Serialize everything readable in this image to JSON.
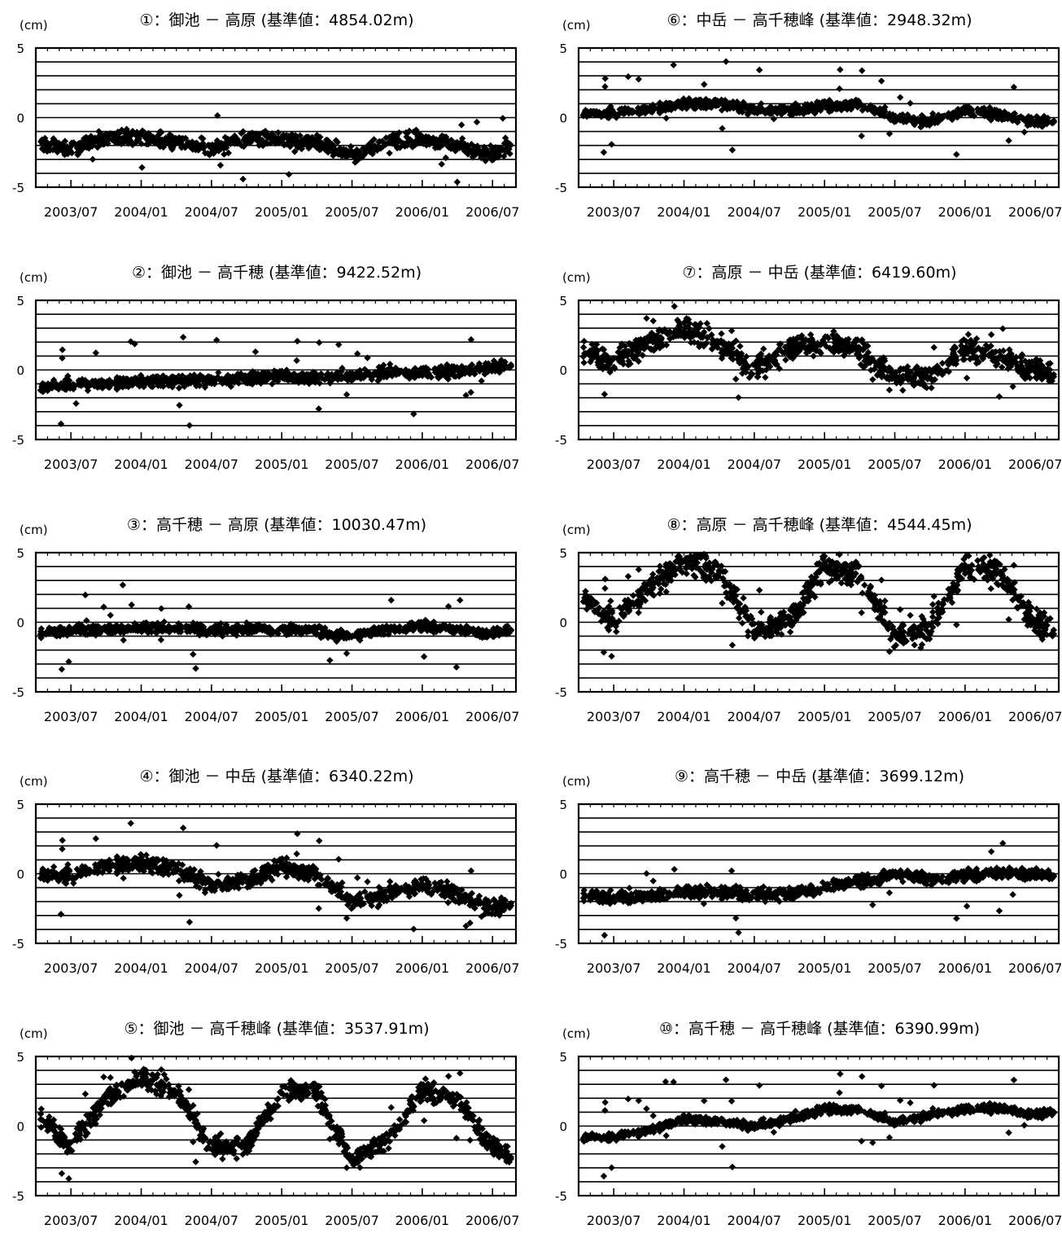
{
  "page": {
    "unit_label": "(cm)"
  },
  "chart_data": [
    {
      "type": "scatter",
      "title": "①：御池 － 高原 (基準値：4854.02m)",
      "ylabel": "(cm)",
      "ylim": [
        -5,
        5
      ],
      "yticks": [
        "5",
        "0",
        "-5"
      ],
      "xticks": [
        "2003/07",
        "2004/01",
        "2004/07",
        "2005/01",
        "2005/07",
        "2006/01",
        "2006/07"
      ],
      "xlim": [
        "2003/04",
        "2006/09"
      ],
      "grid": true,
      "marker": "diamond",
      "color": "#000000",
      "series": [
        {
          "x": [
            "2003/04",
            "2003/07",
            "2003/10",
            "2004/01",
            "2004/04",
            "2004/07",
            "2004/10",
            "2005/01",
            "2005/04",
            "2005/07",
            "2005/10",
            "2006/01",
            "2006/04",
            "2006/07",
            "2006/09"
          ],
          "values": [
            -2,
            -2.3,
            -1.5,
            -1.3,
            -1.8,
            -2.2,
            -1.5,
            -1.6,
            -1.8,
            -2.8,
            -1.7,
            -1.5,
            -1.9,
            -2.7,
            -2.0
          ]
        }
      ]
    },
    {
      "type": "scatter",
      "title": "②：御池 － 高千穂 (基準値：9422.52m)",
      "ylabel": "(cm)",
      "ylim": [
        -5,
        5
      ],
      "yticks": [
        "5",
        "0",
        "-5"
      ],
      "xticks": [
        "2003/07",
        "2004/01",
        "2004/07",
        "2005/01",
        "2005/07",
        "2006/01",
        "2006/07"
      ],
      "xlim": [
        "2003/04",
        "2006/09"
      ],
      "grid": true,
      "marker": "diamond",
      "color": "#000000",
      "series": [
        {
          "x": [
            "2003/04",
            "2003/07",
            "2003/10",
            "2004/01",
            "2004/04",
            "2004/07",
            "2004/10",
            "2005/01",
            "2005/04",
            "2005/07",
            "2005/10",
            "2006/01",
            "2006/04",
            "2006/07",
            "2006/09"
          ],
          "values": [
            -1.3,
            -1.0,
            -1.0,
            -0.8,
            -0.8,
            -0.7,
            -0.6,
            -0.5,
            -0.5,
            -0.4,
            -0.2,
            -0.2,
            -0.1,
            0.2,
            0.3
          ]
        }
      ]
    },
    {
      "type": "scatter",
      "title": "③：高千穂 － 高原 (基準値：10030.47m)",
      "ylabel": "(cm)",
      "ylim": [
        -5,
        5
      ],
      "yticks": [
        "5",
        "0",
        "-5"
      ],
      "xticks": [
        "2003/07",
        "2004/01",
        "2004/07",
        "2005/01",
        "2005/07",
        "2006/01",
        "2006/07"
      ],
      "xlim": [
        "2003/04",
        "2006/09"
      ],
      "grid": true,
      "marker": "diamond",
      "color": "#000000",
      "series": [
        {
          "x": [
            "2003/04",
            "2003/07",
            "2003/10",
            "2004/01",
            "2004/04",
            "2004/07",
            "2004/10",
            "2005/01",
            "2005/04",
            "2005/07",
            "2005/10",
            "2006/01",
            "2006/04",
            "2006/07",
            "2006/09"
          ],
          "values": [
            -0.8,
            -0.6,
            -0.5,
            -0.4,
            -0.4,
            -0.6,
            -0.5,
            -0.5,
            -0.6,
            -1.0,
            -0.5,
            -0.3,
            -0.5,
            -0.8,
            -0.5
          ]
        }
      ]
    },
    {
      "type": "scatter",
      "title": "④：御池 － 中岳 (基準値：6340.22m)",
      "ylabel": "(cm)",
      "ylim": [
        -5,
        5
      ],
      "yticks": [
        "5",
        "0",
        "-5"
      ],
      "xticks": [
        "2003/07",
        "2004/01",
        "2004/07",
        "2005/01",
        "2005/07",
        "2006/01",
        "2006/07"
      ],
      "xlim": [
        "2003/04",
        "2006/09"
      ],
      "grid": true,
      "marker": "diamond",
      "color": "#000000",
      "series": [
        {
          "x": [
            "2003/04",
            "2003/07",
            "2003/10",
            "2004/01",
            "2004/04",
            "2004/07",
            "2004/10",
            "2005/01",
            "2005/04",
            "2005/07",
            "2005/10",
            "2006/01",
            "2006/04",
            "2006/07",
            "2006/09"
          ],
          "values": [
            0,
            -0.2,
            0.6,
            0.8,
            0.3,
            -0.8,
            -0.5,
            0.5,
            0,
            -2.0,
            -1.5,
            -0.8,
            -1.5,
            -2.5,
            -2.2
          ]
        }
      ]
    },
    {
      "type": "scatter",
      "title": "⑤：御池 － 高千穂峰 (基準値：3537.91m)",
      "ylabel": "(cm)",
      "ylim": [
        -5,
        5
      ],
      "yticks": [
        "5",
        "0",
        "-5"
      ],
      "xticks": [
        "2003/07",
        "2004/01",
        "2004/07",
        "2005/01",
        "2005/07",
        "2006/01",
        "2006/07"
      ],
      "xlim": [
        "2003/04",
        "2006/09"
      ],
      "grid": true,
      "marker": "diamond",
      "color": "#000000",
      "series": [
        {
          "x": [
            "2003/04",
            "2003/07",
            "2003/10",
            "2004/01",
            "2004/04",
            "2004/07",
            "2004/10",
            "2005/01",
            "2005/04",
            "2005/07",
            "2005/10",
            "2006/01",
            "2006/04",
            "2006/07",
            "2006/09"
          ],
          "values": [
            1,
            -1.5,
            2,
            3.5,
            2.5,
            -1.5,
            -1.5,
            2.5,
            2.5,
            -2.5,
            -1,
            2.5,
            2,
            -1.5,
            -2.5
          ]
        }
      ]
    },
    {
      "type": "scatter",
      "title": "⑥：中岳 － 高千穂峰 (基準値：2948.32m)",
      "ylabel": "(cm)",
      "ylim": [
        -5,
        5
      ],
      "yticks": [
        "5",
        "0",
        "-5"
      ],
      "xticks": [
        "2003/07",
        "2004/01",
        "2004/07",
        "2005/01",
        "2005/07",
        "2006/01",
        "2006/07"
      ],
      "xlim": [
        "2003/04",
        "2006/09"
      ],
      "grid": true,
      "marker": "diamond",
      "color": "#000000",
      "series": [
        {
          "x": [
            "2003/04",
            "2003/07",
            "2003/10",
            "2004/01",
            "2004/04",
            "2004/07",
            "2004/10",
            "2005/01",
            "2005/04",
            "2005/07",
            "2005/10",
            "2006/01",
            "2006/04",
            "2006/07",
            "2006/09"
          ],
          "values": [
            0.3,
            0.3,
            0.6,
            1,
            1,
            0.6,
            0.5,
            0.8,
            1,
            0,
            -0.3,
            0.5,
            0.2,
            -0.3,
            -0.3
          ]
        }
      ]
    },
    {
      "type": "scatter",
      "title": "⑦：高原 － 中岳 (基準値：6419.60m)",
      "ylabel": "(cm)",
      "ylim": [
        -5,
        5
      ],
      "yticks": [
        "5",
        "0",
        "-5"
      ],
      "xticks": [
        "2003/07",
        "2004/01",
        "2004/07",
        "2005/01",
        "2005/07",
        "2006/01",
        "2006/07"
      ],
      "xlim": [
        "2003/04",
        "2006/09"
      ],
      "grid": true,
      "marker": "diamond",
      "color": "#000000",
      "series": [
        {
          "x": [
            "2003/04",
            "2003/07",
            "2003/10",
            "2004/01",
            "2004/04",
            "2004/07",
            "2004/10",
            "2005/01",
            "2005/04",
            "2005/07",
            "2005/10",
            "2006/01",
            "2006/04",
            "2006/07",
            "2006/09"
          ],
          "values": [
            1.5,
            0.5,
            2,
            3,
            2,
            0,
            1.5,
            2,
            1.5,
            -0.5,
            -0.5,
            1.5,
            1,
            0,
            -0.5
          ]
        }
      ]
    },
    {
      "type": "scatter",
      "title": "⑧：高原 － 高千穂峰 (基準値：4544.45m)",
      "ylabel": "(cm)",
      "ylim": [
        -5,
        5
      ],
      "yticks": [
        "5",
        "0",
        "-5"
      ],
      "xticks": [
        "2003/07",
        "2004/01",
        "2004/07",
        "2005/01",
        "2005/07",
        "2006/01",
        "2006/07"
      ],
      "xlim": [
        "2003/04",
        "2006/09"
      ],
      "grid": true,
      "marker": "diamond",
      "color": "#000000",
      "series": [
        {
          "x": [
            "2003/04",
            "2003/07",
            "2003/10",
            "2004/01",
            "2004/04",
            "2004/07",
            "2004/10",
            "2005/01",
            "2005/04",
            "2005/07",
            "2005/10",
            "2006/01",
            "2006/04",
            "2006/07",
            "2006/09"
          ],
          "values": [
            2,
            0,
            2.5,
            4.5,
            3.5,
            -0.5,
            0,
            4,
            3.5,
            -1,
            -0.5,
            4,
            3.5,
            0,
            -1
          ]
        }
      ]
    },
    {
      "type": "scatter",
      "title": "⑨：高千穂 － 中岳 (基準値：3699.12m)",
      "ylabel": "(cm)",
      "ylim": [
        -5,
        5
      ],
      "yticks": [
        "5",
        "0",
        "-5"
      ],
      "xticks": [
        "2003/07",
        "2004/01",
        "2004/07",
        "2005/01",
        "2005/07",
        "2006/01",
        "2006/07"
      ],
      "xlim": [
        "2003/04",
        "2006/09"
      ],
      "grid": true,
      "marker": "diamond",
      "color": "#000000",
      "series": [
        {
          "x": [
            "2003/04",
            "2003/07",
            "2003/10",
            "2004/01",
            "2004/04",
            "2004/07",
            "2004/10",
            "2005/01",
            "2005/04",
            "2005/07",
            "2005/10",
            "2006/01",
            "2006/04",
            "2006/07",
            "2006/09"
          ],
          "values": [
            -1.5,
            -1.8,
            -1.6,
            -1.3,
            -1.3,
            -1.5,
            -1.5,
            -1.0,
            -0.5,
            0,
            -0.4,
            -0.2,
            0.1,
            0,
            -0.2
          ]
        }
      ]
    },
    {
      "type": "scatter",
      "title": "⑩：高千穂 － 高千穂峰 (基準値：6390.99m)",
      "ylabel": "(cm)",
      "ylim": [
        -5,
        5
      ],
      "yticks": [
        "5",
        "0",
        "-5"
      ],
      "xticks": [
        "2003/07",
        "2004/01",
        "2004/07",
        "2005/01",
        "2005/07",
        "2006/01",
        "2006/07"
      ],
      "xlim": [
        "2003/04",
        "2006/09"
      ],
      "grid": true,
      "marker": "diamond",
      "color": "#000000",
      "series": [
        {
          "x": [
            "2003/04",
            "2003/07",
            "2003/10",
            "2004/01",
            "2004/04",
            "2004/07",
            "2004/10",
            "2005/01",
            "2005/04",
            "2005/07",
            "2005/10",
            "2006/01",
            "2006/04",
            "2006/07",
            "2006/09"
          ],
          "values": [
            -0.8,
            -0.8,
            -0.3,
            0.5,
            0.3,
            0,
            0.5,
            1.2,
            1.2,
            0.3,
            0.8,
            1.2,
            1.3,
            0.8,
            1.0
          ]
        }
      ]
    }
  ]
}
